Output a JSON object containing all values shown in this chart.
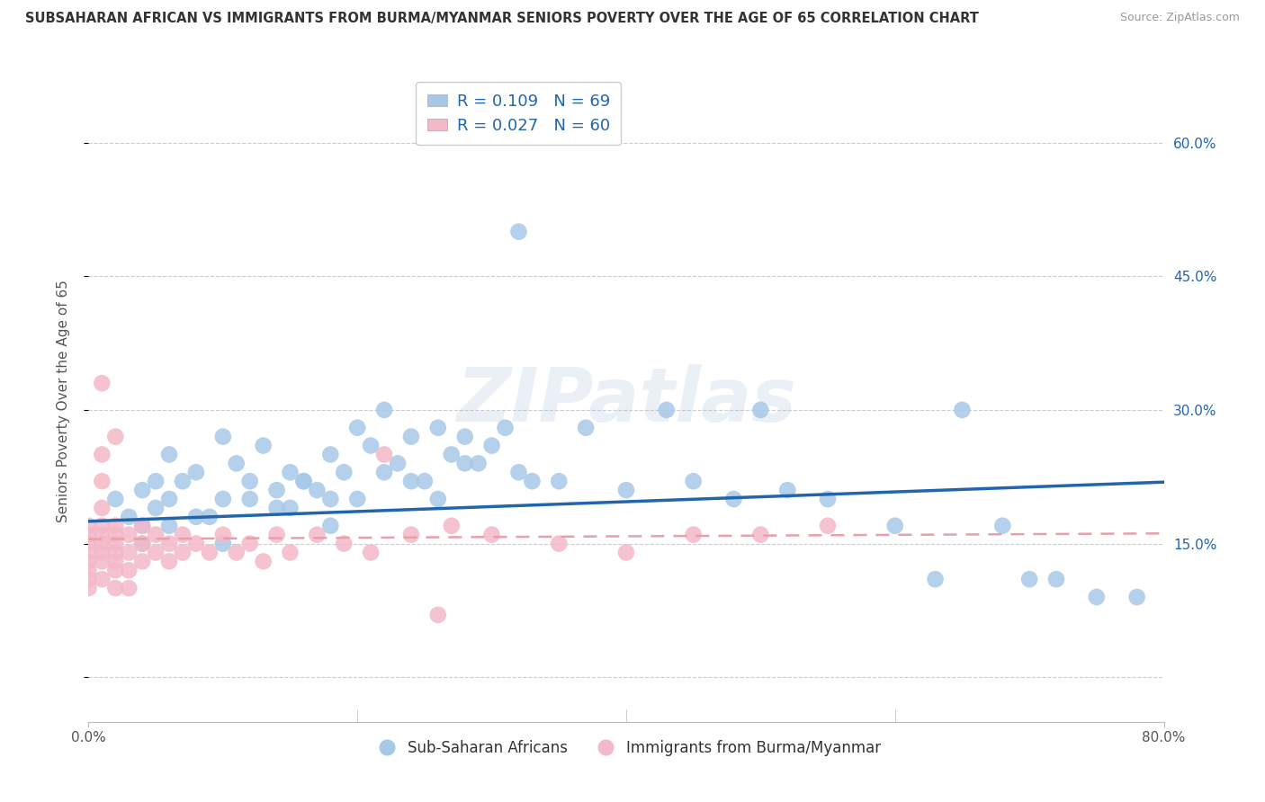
{
  "title": "SUBSAHARAN AFRICAN VS IMMIGRANTS FROM BURMA/MYANMAR SENIORS POVERTY OVER THE AGE OF 65 CORRELATION CHART",
  "source": "Source: ZipAtlas.com",
  "ylabel": "Seniors Poverty Over the Age of 65",
  "xlim": [
    0.0,
    0.8
  ],
  "ylim": [
    -0.05,
    0.67
  ],
  "yticks": [
    0.0,
    0.15,
    0.3,
    0.45,
    0.6
  ],
  "ytick_labels_left": [
    "",
    "",
    "",
    "",
    ""
  ],
  "right_ytick_labels": [
    "60.0%",
    "45.0%",
    "30.0%",
    "15.0%"
  ],
  "right_ytick_vals": [
    0.6,
    0.45,
    0.3,
    0.15
  ],
  "legend_label1": "Sub-Saharan Africans",
  "legend_label2": "Immigrants from Burma/Myanmar",
  "color_blue": "#a8c8e8",
  "color_pink": "#f4b8c8",
  "line_color_blue": "#2166ac",
  "line_color_pink": "#e8a0a8",
  "background_color": "#ffffff",
  "grid_color": "#cccccc",
  "R1": 0.109,
  "N1": 69,
  "R2": 0.027,
  "N2": 60,
  "blue_intercept": 0.175,
  "blue_slope": 0.055,
  "pink_intercept": 0.155,
  "pink_slope": 0.008,
  "blue_x": [
    0.02,
    0.03,
    0.04,
    0.04,
    0.05,
    0.05,
    0.06,
    0.06,
    0.07,
    0.08,
    0.09,
    0.1,
    0.1,
    0.11,
    0.12,
    0.13,
    0.14,
    0.15,
    0.15,
    0.16,
    0.17,
    0.18,
    0.18,
    0.19,
    0.2,
    0.21,
    0.22,
    0.23,
    0.24,
    0.25,
    0.26,
    0.27,
    0.28,
    0.29,
    0.3,
    0.31,
    0.32,
    0.33,
    0.35,
    0.37,
    0.4,
    0.43,
    0.45,
    0.48,
    0.5,
    0.52,
    0.55,
    0.6,
    0.63,
    0.65,
    0.68,
    0.7,
    0.72,
    0.75,
    0.78,
    0.04,
    0.08,
    0.12,
    0.16,
    0.2,
    0.24,
    0.28,
    0.32,
    0.06,
    0.14,
    0.22,
    0.1,
    0.18,
    0.26
  ],
  "blue_y": [
    0.2,
    0.18,
    0.21,
    0.17,
    0.22,
    0.19,
    0.25,
    0.2,
    0.22,
    0.23,
    0.18,
    0.2,
    0.27,
    0.24,
    0.22,
    0.26,
    0.21,
    0.23,
    0.19,
    0.22,
    0.21,
    0.25,
    0.2,
    0.23,
    0.28,
    0.26,
    0.3,
    0.24,
    0.27,
    0.22,
    0.28,
    0.25,
    0.27,
    0.24,
    0.26,
    0.28,
    0.5,
    0.22,
    0.22,
    0.28,
    0.21,
    0.3,
    0.22,
    0.2,
    0.3,
    0.21,
    0.2,
    0.17,
    0.11,
    0.3,
    0.17,
    0.11,
    0.11,
    0.09,
    0.09,
    0.15,
    0.18,
    0.2,
    0.22,
    0.2,
    0.22,
    0.24,
    0.23,
    0.17,
    0.19,
    0.23,
    0.15,
    0.17,
    0.2
  ],
  "pink_x": [
    0.0,
    0.0,
    0.0,
    0.0,
    0.0,
    0.0,
    0.0,
    0.0,
    0.01,
    0.01,
    0.01,
    0.01,
    0.01,
    0.01,
    0.01,
    0.01,
    0.01,
    0.02,
    0.02,
    0.02,
    0.02,
    0.02,
    0.02,
    0.02,
    0.03,
    0.03,
    0.03,
    0.03,
    0.04,
    0.04,
    0.04,
    0.05,
    0.05,
    0.06,
    0.06,
    0.07,
    0.07,
    0.08,
    0.09,
    0.1,
    0.11,
    0.12,
    0.13,
    0.14,
    0.15,
    0.17,
    0.19,
    0.21,
    0.24,
    0.27,
    0.22,
    0.26,
    0.3,
    0.35,
    0.4,
    0.45,
    0.5,
    0.55,
    0.01,
    0.02
  ],
  "pink_y": [
    0.16,
    0.15,
    0.17,
    0.13,
    0.14,
    0.12,
    0.11,
    0.1,
    0.17,
    0.22,
    0.25,
    0.15,
    0.13,
    0.19,
    0.14,
    0.16,
    0.11,
    0.15,
    0.17,
    0.13,
    0.16,
    0.14,
    0.12,
    0.1,
    0.16,
    0.14,
    0.12,
    0.1,
    0.15,
    0.17,
    0.13,
    0.16,
    0.14,
    0.15,
    0.13,
    0.16,
    0.14,
    0.15,
    0.14,
    0.16,
    0.14,
    0.15,
    0.13,
    0.16,
    0.14,
    0.16,
    0.15,
    0.14,
    0.16,
    0.17,
    0.25,
    0.07,
    0.16,
    0.15,
    0.14,
    0.16,
    0.16,
    0.17,
    0.33,
    0.27
  ]
}
